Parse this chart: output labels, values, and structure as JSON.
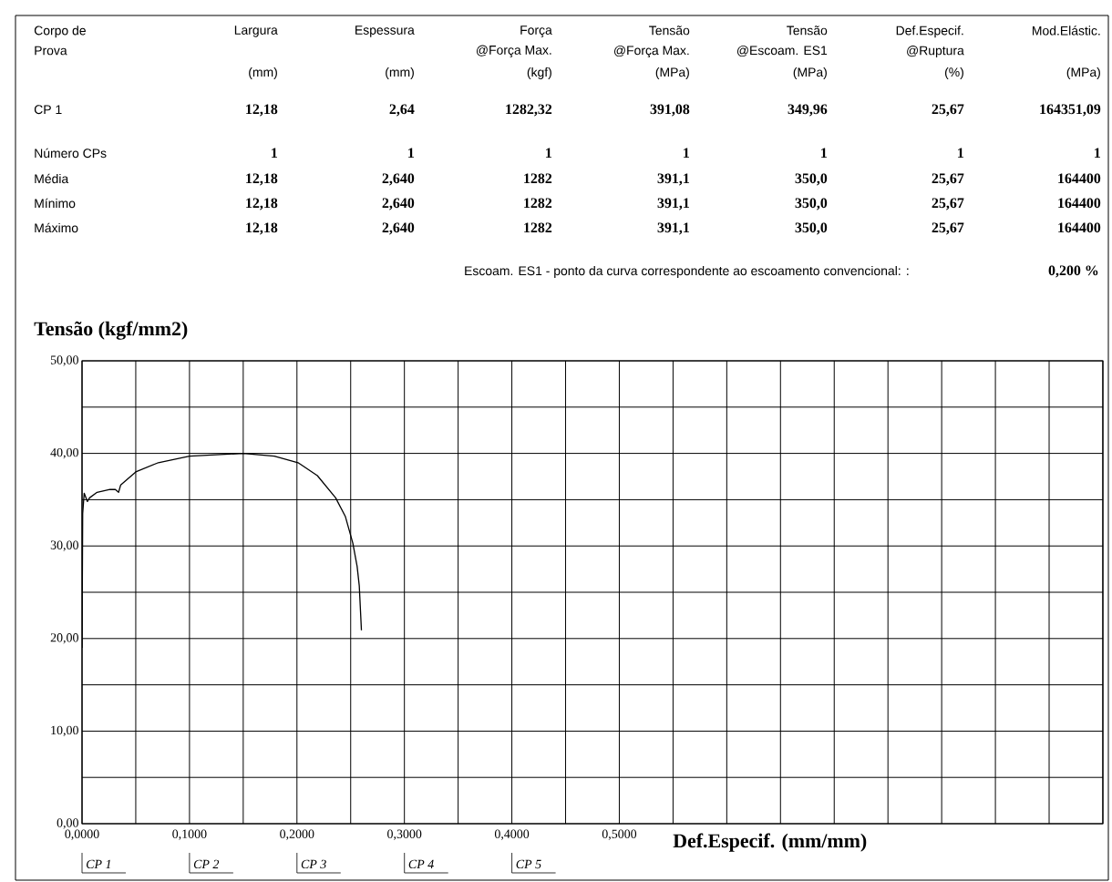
{
  "chart_data": {
    "type": "line",
    "ylabel": "Tensão (kgf/mm2)",
    "xlabel": "Def.Especif. (mm/mm)",
    "x": [
      0,
      0.0006,
      0.002,
      0.005,
      0.007,
      0.014,
      0.026,
      0.031,
      0.034,
      0.036,
      0.05,
      0.071,
      0.1,
      0.15,
      0.179,
      0.201,
      0.219,
      0.236,
      0.245,
      0.252,
      0.256,
      0.258,
      0.26
    ],
    "series": [
      {
        "color": "#000000",
        "values": [
          19.0,
          33.5,
          35.7,
          34.8,
          35.2,
          35.8,
          36.1,
          36.1,
          35.8,
          36.6,
          38.0,
          39.0,
          39.7,
          40.0,
          39.7,
          39.0,
          37.6,
          35.2,
          33.2,
          30.3,
          27.8,
          25.7,
          20.9
        ]
      }
    ],
    "xlim": [
      0,
      0.95
    ],
    "ylim": [
      0,
      50
    ],
    "xticks": [
      {
        "value": 0,
        "label": "0,0000"
      },
      {
        "value": 0.05,
        "label": null
      },
      {
        "value": 0.1,
        "label": "0,1000"
      },
      {
        "value": 0.15,
        "label": null
      },
      {
        "value": 0.2,
        "label": "0,2000"
      },
      {
        "value": 0.25,
        "label": null
      },
      {
        "value": 0.3,
        "label": "0,3000"
      },
      {
        "value": 0.35,
        "label": null
      },
      {
        "value": 0.4,
        "label": "0,4000"
      },
      {
        "value": 0.45,
        "label": null
      },
      {
        "value": 0.5,
        "label": "0,5000"
      },
      {
        "value": 0.55,
        "label": null
      },
      {
        "value": 0.6,
        "label": null
      },
      {
        "value": 0.65,
        "label": null
      },
      {
        "value": 0.7,
        "label": null
      },
      {
        "value": 0.75,
        "label": null
      },
      {
        "value": 0.8,
        "label": null
      },
      {
        "value": 0.85,
        "label": null
      },
      {
        "value": 0.9,
        "label": null
      },
      {
        "value": 0.95,
        "label": null
      }
    ],
    "yticks": [
      {
        "value": 0,
        "label": "0,00"
      },
      {
        "value": 5,
        "label": null
      },
      {
        "value": 10,
        "label": "10,00"
      },
      {
        "value": 15,
        "label": null
      },
      {
        "value": 20,
        "label": "20,00"
      },
      {
        "value": 25,
        "label": null
      },
      {
        "value": 30,
        "label": "30,00"
      },
      {
        "value": 35,
        "label": null
      },
      {
        "value": 40,
        "label": "40,00"
      },
      {
        "value": 45,
        "label": null
      },
      {
        "value": 50,
        "label": "50,00"
      }
    ],
    "grid": true,
    "annotations": [
      "Corpo de Prova",
      "Largura",
      "Espessura",
      "Força @Força Max.",
      "Tensão @Força Max.",
      "Tensão @Escoam. ES1",
      "Def.Especif. @Ruptura",
      "Mod.Elástic.",
      "(mm)",
      "(mm)",
      "(kgf)",
      "(MPa)",
      "(MPa)",
      "(%)",
      "(MPa)",
      "CP 1",
      "12,18",
      "2,64",
      "1282,32",
      "391,08",
      "349,96",
      "25,67",
      "164351,09",
      "Número CPs",
      "1",
      "1",
      "1",
      "1",
      "1",
      "1",
      "1",
      "Média",
      "12,18",
      "2,640",
      "1282",
      "391,1",
      "350,0",
      "25,67",
      "164400",
      "Mínimo",
      "12,18",
      "2,640",
      "1282",
      "391,1",
      "350,0",
      "25,67",
      "164400",
      "Máximo",
      "12,18",
      "2,640",
      "1282",
      "391,1",
      "350,0",
      "25,67",
      "164400",
      "Escoam. ES1 - ponto da curva correspondente ao escoamento convencional: :",
      "0,200 %",
      "CP 1",
      "CP 2",
      "CP 3",
      "CP 4",
      "CP 5"
    ]
  }
}
